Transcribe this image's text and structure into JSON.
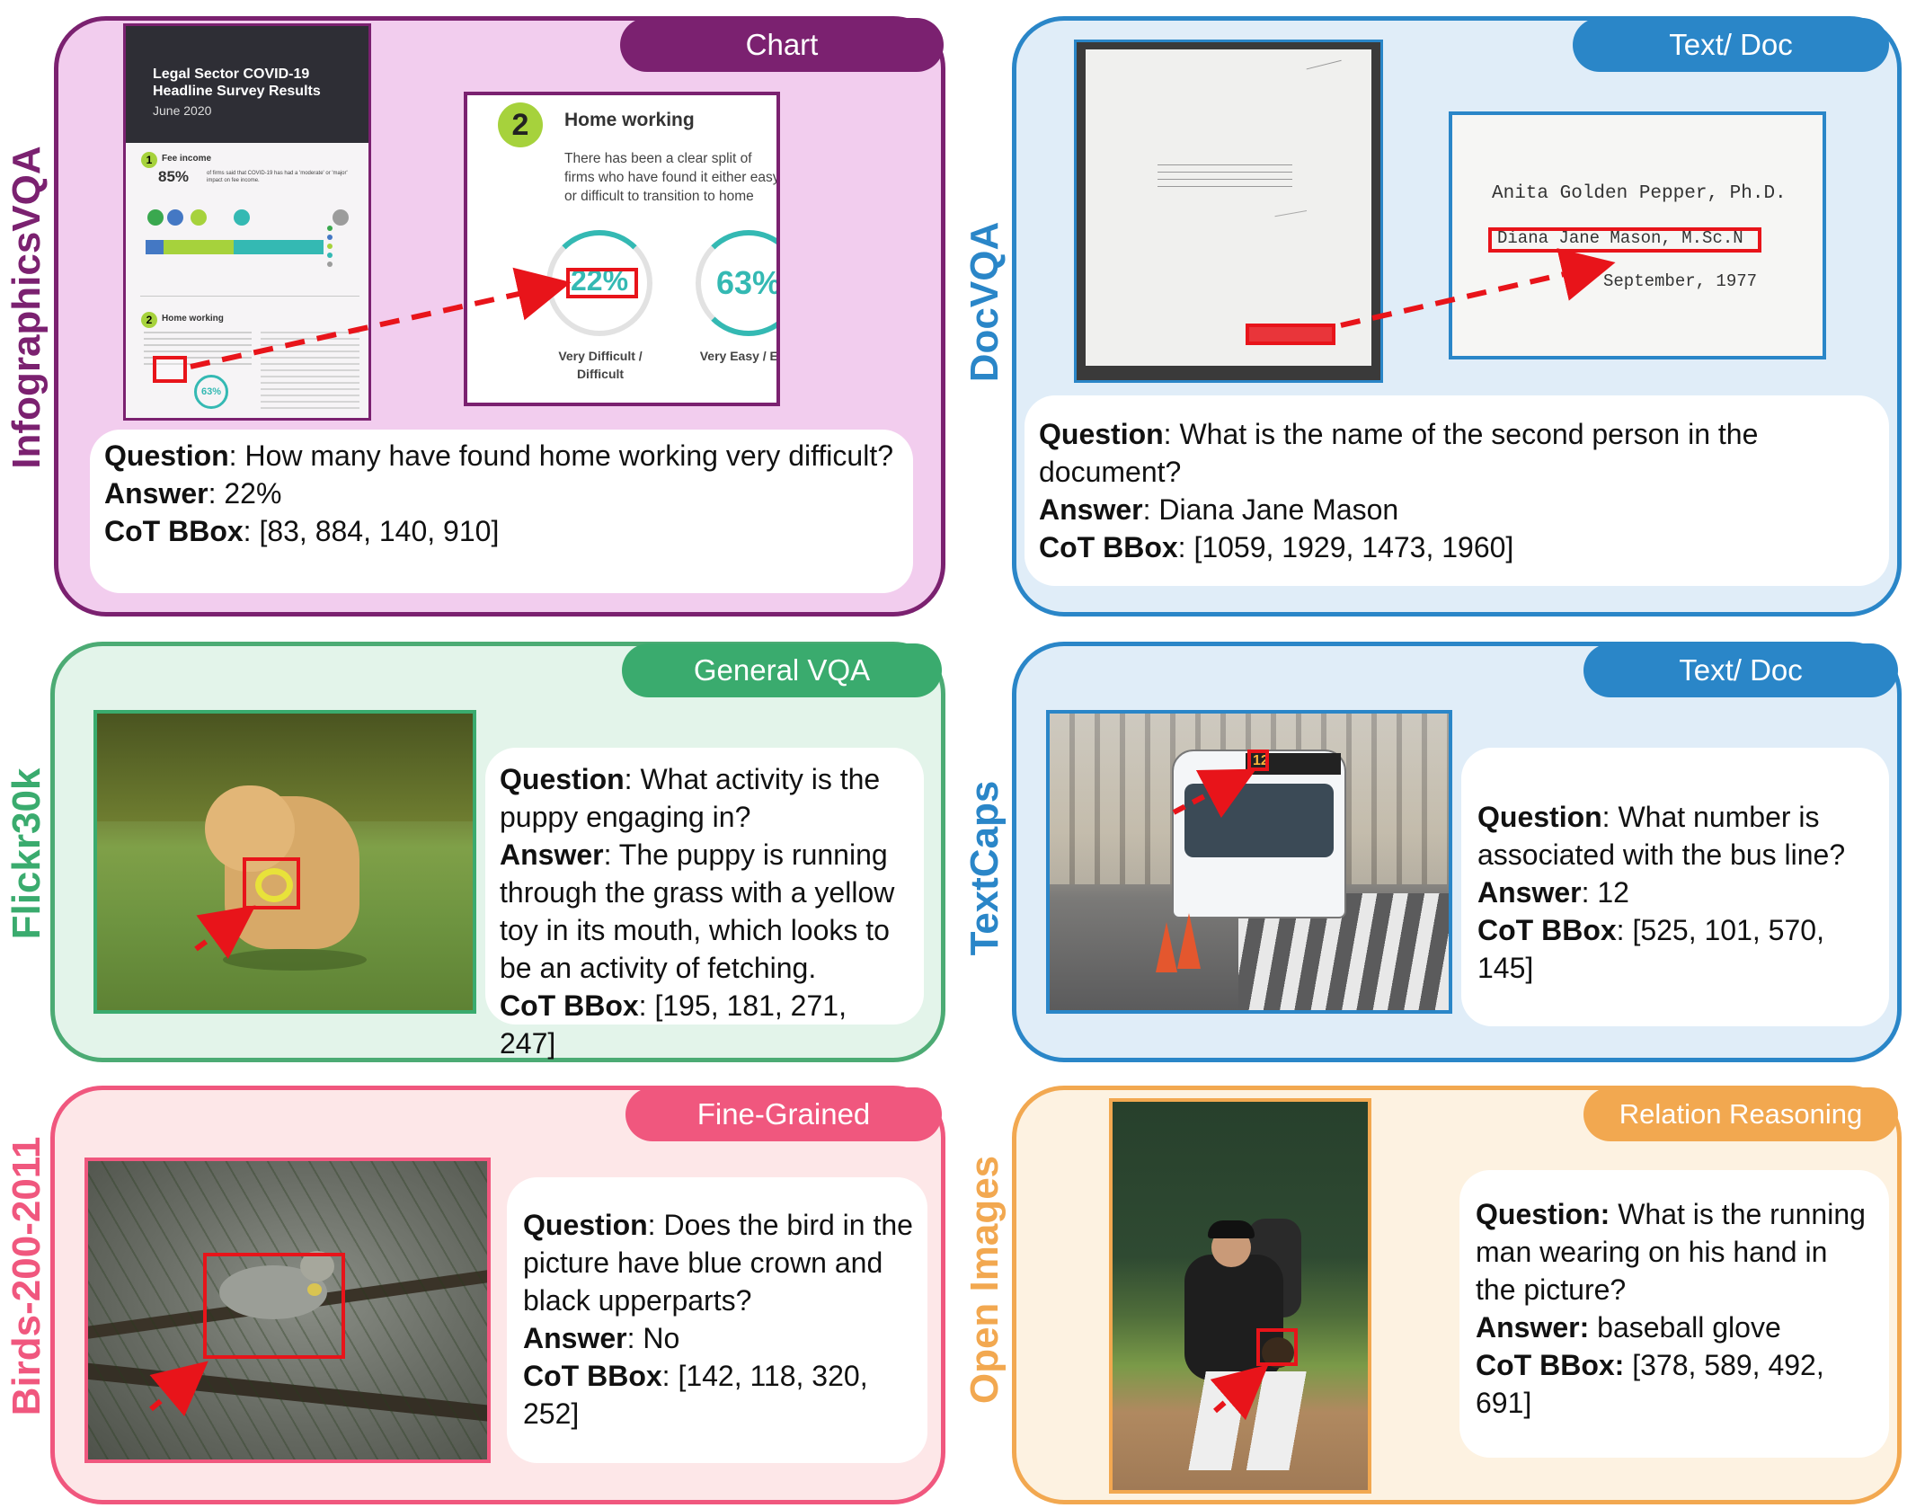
{
  "colors": {
    "purple": "#7b2170",
    "purple_bg": "#f2cdee",
    "blue": "#2a86c8",
    "blue_bg": "#e0edf8",
    "green": "#3aab6e",
    "green_stroke": "#4cab74",
    "green_bg": "#e3f4ea",
    "pink": "#f0577e",
    "pink_bg": "#fde7e8",
    "orange": "#f2a850",
    "orange_bg": "#fdf2e1",
    "arrow_red": "#e8141a"
  },
  "panels": {
    "infographics": {
      "label": "InfographicsVQA",
      "tag": "Chart",
      "question_label": "Question",
      "question": ": How many have found home working very difficult?",
      "answer_label": "Answer",
      "answer": ": 22%",
      "bbox_label": "CoT BBox",
      "bbox": ": [83, 884, 140, 910]",
      "thumb": {
        "title": "Legal Sector COVID-19 Headline Survey Results",
        "date": "June 2020",
        "badge1": "1",
        "section1": "Fee income",
        "stat": "85%",
        "stat_text": "of firms said that COVID-19 has had a 'moderate' or 'major' impact on fee income.",
        "badge2": "2",
        "section2": "Home working"
      },
      "zoom": {
        "badge": "2",
        "heading": "Home working",
        "body": "There has been a clear split of firms who have found it either easy or difficult to transition to home working.",
        "pct1": "22%",
        "cap1": "Very Difficult / Difficult",
        "pct2": "63%",
        "cap2": "Very Easy / Easy"
      }
    },
    "docvqa": {
      "label": "DocVQA",
      "tag": "Text/ Doc",
      "question_label": "Question",
      "question": ": What is the name of the second person in the document?",
      "answer_label": "Answer",
      "answer": ": Diana Jane Mason",
      "bbox_label": "CoT BBox",
      "bbox": ": [1059, 1929, 1473, 1960]",
      "zoom": {
        "line1": "Anita Golden Pepper, Ph.D.",
        "line2": "Diana Jane Mason, M.Sc.N",
        "line3": "September, 1977"
      }
    },
    "flickr": {
      "label": "Flickr30k",
      "tag": "General VQA",
      "question_label": "Question",
      "question": ": What activity is the puppy engaging in?",
      "answer_label": "Answer",
      "answer": ":  The puppy is running through the grass with a yellow toy in its mouth, which looks to be an activity of fetching.",
      "bbox_label": "CoT BBox",
      "bbox": ": [195, 181, 271, 247]"
    },
    "textcaps": {
      "label": "TextCaps",
      "tag": "Text/ Doc",
      "question_label": "Question",
      "question": ": What number is associated with the bus line?",
      "answer_label": "Answer",
      "answer": ":  12",
      "bbox_label": "CoT BBox",
      "bbox": ": [525, 101, 570, 145]",
      "bus_number": "12"
    },
    "birds": {
      "label": "Birds-200-2011",
      "tag": "Fine-Grained",
      "question_label": "Question",
      "question": ": Does the bird in the picture have blue crown and black upperparts?",
      "answer_label": "Answer",
      "answer": ": No",
      "bbox_label": "CoT BBox",
      "bbox": ": [142, 118, 320, 252]"
    },
    "openimages": {
      "label": "Open Images",
      "tag": "Relation Reasoning",
      "question_label": "Question:",
      "question": " What is the running man wearing on his hand in the picture?",
      "answer_label": "Answer:",
      "answer": " baseball glove",
      "bbox_label": "CoT BBox:",
      "bbox": " [378, 589, 492, 691]"
    }
  }
}
